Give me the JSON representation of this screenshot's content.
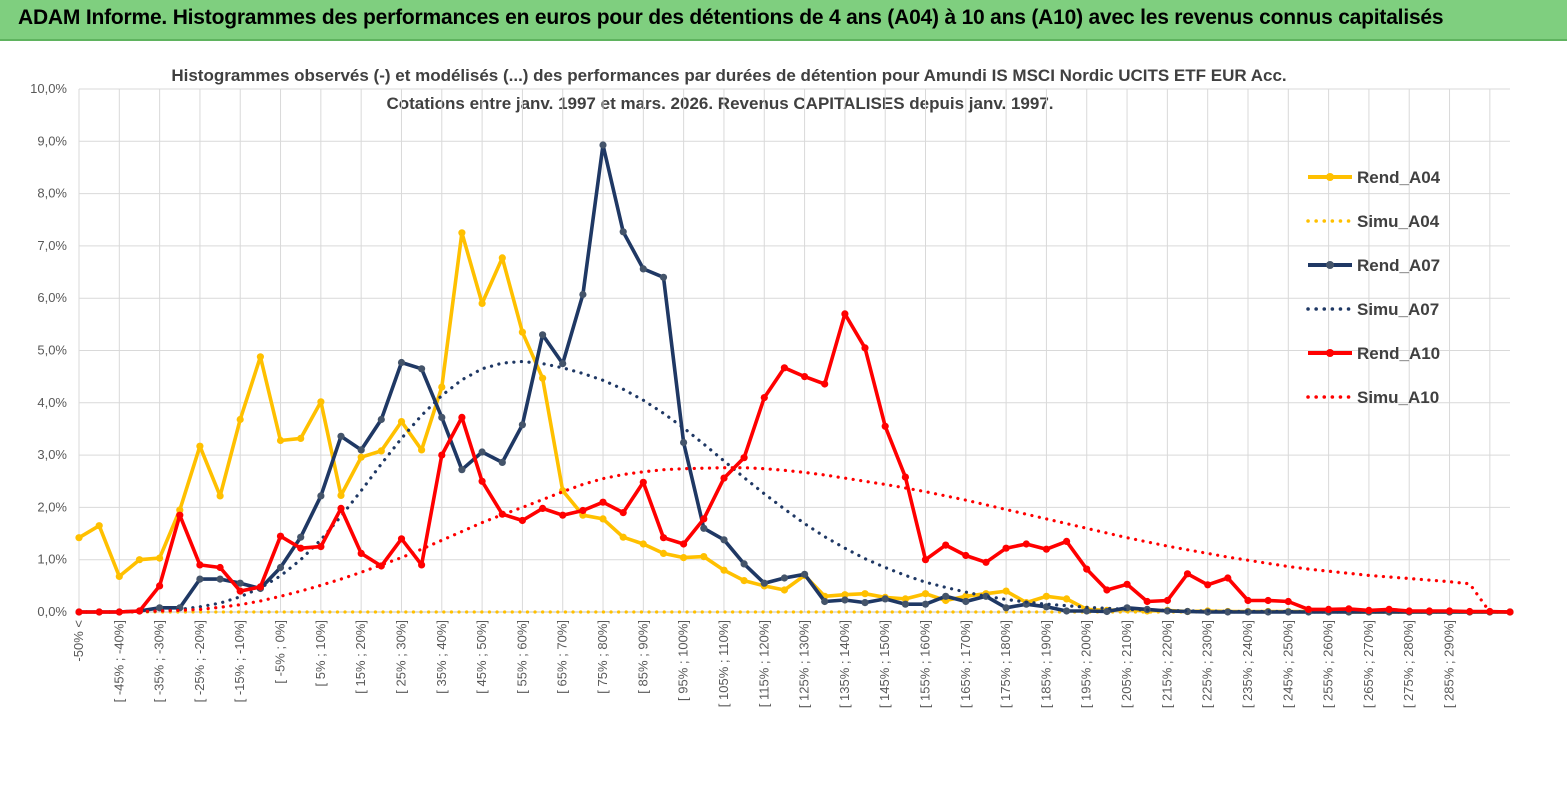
{
  "banner": {
    "title": "ADAM Informe. Histogrammes des performances en euros pour des détentions de 4 ans (A04) à 10 ans (A10) avec les revenus connus capitalisés"
  },
  "colors": {
    "banner_bg": "#7fcf7f",
    "A04": "#ffc000",
    "A07": "#1f3864",
    "A07_marker": "#44546a",
    "A10": "#ff0000",
    "grid": "#d9d9d9",
    "text": "#404040"
  },
  "chart_data": {
    "type": "line",
    "title_line1": "Histogrammes observés (-) et modélisés (...) des performances par durées de détention pour Amundi IS  MSCI Nordic UCITS ETF EUR Acc.",
    "title_line2": "Cotations entre janv. 1997 et mars. 2026.  Revenus CAPITALISES depuis janv. 1997.",
    "ylim": [
      0,
      10
    ],
    "y_ticks": [
      "0,0%",
      "1,0%",
      "2,0%",
      "3,0%",
      "4,0%",
      "5,0%",
      "6,0%",
      "7,0%",
      "8,0%",
      "9,0%",
      "10,0%"
    ],
    "x_labels": [
      "-50% <",
      "[ -45% ; -40%]",
      "[ -35% ; -30%]",
      "[ -25% ; -20%]",
      "[ -15% ; -10%]",
      "[ -5% ; 0%]",
      "[ 5% ; 10%]",
      "[ 15% ; 20%]",
      "[ 25% ; 30%]",
      "[ 35% ; 40%]",
      "[ 45% ; 50%]",
      "[ 55% ; 60%]",
      "[ 65% ; 70%]",
      "[ 75% ; 80%]",
      "[ 85% ; 90%]",
      "[ 95% ; 100%]",
      "[ 105% ; 110%]",
      "[ 115% ; 120%]",
      "[ 125% ; 130%]",
      "[ 135% ; 140%]",
      "[ 145% ; 150%]",
      "[ 155% ; 160%]",
      "[ 165% ; 170%]",
      "[ 175% ; 180%]",
      "[ 185% ; 190%]",
      "[ 195% ; 200%]",
      "[ 205% ; 210%]",
      "[ 215% ; 220%]",
      "[ 225% ; 230%]",
      "[ 235% ; 240%]",
      "[ 245% ; 250%]",
      "[ 255% ; 260%]",
      "[ 265% ; 270%]",
      "[ 275% ; 280%]",
      "[ 285% ; 290%]"
    ],
    "n_points": 72,
    "series": [
      {
        "name": "Rend_A04",
        "style": "solid",
        "color": "#ffc000",
        "values": [
          1.42,
          1.65,
          0.68,
          1.0,
          1.03,
          1.95,
          3.17,
          2.22,
          3.68,
          4.88,
          3.28,
          3.32,
          4.02,
          2.23,
          2.96,
          3.08,
          3.64,
          3.1,
          4.3,
          7.25,
          5.9,
          6.77,
          5.35,
          4.47,
          2.32,
          1.85,
          1.78,
          1.43,
          1.3,
          1.12,
          1.04,
          1.06,
          0.8,
          0.6,
          0.5,
          0.42,
          0.7,
          0.3,
          0.33,
          0.35,
          0.28,
          0.25,
          0.35,
          0.22,
          0.3,
          0.35,
          0.4,
          0.18,
          0.3,
          0.25,
          0.05,
          0.03,
          0.05,
          0.02,
          0.03,
          0.01,
          0.02,
          0.01,
          0.01,
          0.01,
          0.01,
          0.01,
          0.01,
          0.0,
          0.0,
          0.0,
          0.0,
          0.0,
          0.0,
          0.0,
          0.0,
          0.0
        ]
      },
      {
        "name": "Simu_A04",
        "style": "dotted",
        "color": "#ffc000",
        "values": [
          0.0,
          0.0,
          0.0,
          0.0,
          0.0,
          0.0,
          0.0,
          0.0,
          0.0,
          0.0,
          0.0,
          0.0,
          0.0,
          0.0,
          0.0,
          0.0,
          0.0,
          0.0,
          0.0,
          0.0,
          0.0,
          0.0,
          0.0,
          0.0,
          0.0,
          0.0,
          0.0,
          0.0,
          0.0,
          0.0,
          0.0,
          0.0,
          0.0,
          0.0,
          0.0,
          0.0,
          0.0,
          0.0,
          0.0,
          0.0,
          0.0,
          0.0,
          0.0,
          0.0,
          0.0,
          0.0,
          0.0,
          0.0,
          0.0,
          0.0,
          0.0,
          0.0,
          0.0,
          0.0,
          0.0,
          0.0,
          0.0,
          0.0,
          0.0,
          0.0,
          0.0,
          0.0,
          0.0,
          0.0,
          0.0,
          0.0,
          0.0,
          0.0,
          0.0,
          0.0,
          0.0,
          0.0
        ]
      },
      {
        "name": "Rend_A07",
        "style": "solid",
        "color": "#1f3864",
        "values": [
          0.0,
          0.0,
          0.0,
          0.02,
          0.08,
          0.08,
          0.63,
          0.63,
          0.55,
          0.45,
          0.85,
          1.43,
          2.22,
          3.36,
          3.1,
          3.68,
          4.77,
          4.65,
          3.72,
          2.72,
          3.06,
          2.86,
          3.58,
          5.3,
          4.75,
          6.07,
          8.93,
          7.27,
          6.56,
          6.4,
          3.24,
          1.6,
          1.38,
          0.92,
          0.55,
          0.65,
          0.72,
          0.2,
          0.23,
          0.18,
          0.25,
          0.15,
          0.15,
          0.3,
          0.2,
          0.3,
          0.08,
          0.15,
          0.1,
          0.02,
          0.02,
          0.01,
          0.08,
          0.05,
          0.02,
          0.01,
          0.0,
          0.0,
          0.0,
          0.0,
          0.0,
          0.0,
          0.0,
          0.0,
          0.0,
          0.0,
          0.0,
          0.0,
          0.0,
          0.0,
          0.0,
          0.0
        ]
      },
      {
        "name": "Simu_A07",
        "style": "dotted",
        "color": "#1f3864",
        "values": [
          0.0,
          0.0,
          0.0,
          0.01,
          0.02,
          0.05,
          0.1,
          0.17,
          0.29,
          0.46,
          0.69,
          1.0,
          1.38,
          1.83,
          2.32,
          2.83,
          3.32,
          3.76,
          4.14,
          4.44,
          4.65,
          4.76,
          4.79,
          4.75,
          4.67,
          4.56,
          4.43,
          4.26,
          4.05,
          3.8,
          3.52,
          3.21,
          2.89,
          2.57,
          2.26,
          1.97,
          1.69,
          1.44,
          1.22,
          1.02,
          0.85,
          0.7,
          0.57,
          0.47,
          0.38,
          0.3,
          0.24,
          0.19,
          0.15,
          0.12,
          0.09,
          0.07,
          0.05,
          0.04,
          0.03,
          0.02,
          0.02,
          0.01,
          0.01,
          0.01,
          0.01,
          0.0,
          0.0,
          0.0,
          0.0,
          0.0,
          0.0,
          0.0,
          0.0,
          0.0,
          0.0,
          0.0
        ]
      },
      {
        "name": "Rend_A10",
        "style": "solid",
        "color": "#ff0000",
        "values": [
          0.0,
          0.0,
          0.0,
          0.02,
          0.5,
          1.85,
          0.9,
          0.85,
          0.4,
          0.48,
          1.45,
          1.22,
          1.25,
          1.98,
          1.12,
          0.88,
          1.4,
          0.9,
          3.0,
          3.72,
          2.5,
          1.87,
          1.75,
          1.98,
          1.85,
          1.94,
          2.1,
          1.9,
          2.48,
          1.42,
          1.3,
          1.78,
          2.56,
          2.95,
          4.1,
          4.67,
          4.5,
          4.36,
          5.7,
          5.05,
          3.55,
          2.58,
          1.0,
          1.28,
          1.08,
          0.95,
          1.22,
          1.3,
          1.2,
          1.35,
          0.82,
          0.42,
          0.53,
          0.2,
          0.22,
          0.73,
          0.52,
          0.65,
          0.22,
          0.22,
          0.2,
          0.05,
          0.05,
          0.06,
          0.03,
          0.05,
          0.02,
          0.02,
          0.02,
          0.01,
          0.01,
          0.0
        ]
      },
      {
        "name": "Simu_A10",
        "style": "dotted",
        "color": "#ff0000",
        "values": [
          0.0,
          0.0,
          0.0,
          0.01,
          0.02,
          0.03,
          0.05,
          0.09,
          0.14,
          0.21,
          0.3,
          0.4,
          0.51,
          0.63,
          0.76,
          0.9,
          1.04,
          1.2,
          1.37,
          1.54,
          1.71,
          1.86,
          2.0,
          2.15,
          2.3,
          2.44,
          2.55,
          2.63,
          2.68,
          2.72,
          2.74,
          2.75,
          2.76,
          2.76,
          2.74,
          2.71,
          2.67,
          2.62,
          2.56,
          2.5,
          2.44,
          2.37,
          2.3,
          2.22,
          2.14,
          2.05,
          1.96,
          1.87,
          1.78,
          1.69,
          1.6,
          1.51,
          1.42,
          1.34,
          1.26,
          1.19,
          1.12,
          1.05,
          0.99,
          0.93,
          0.87,
          0.82,
          0.78,
          0.74,
          0.7,
          0.67,
          0.64,
          0.61,
          0.58,
          0.54,
          0.0,
          0.0
        ]
      }
    ],
    "legend": [
      "Rend_A04",
      "Simu_A04",
      "Rend_A07",
      "Simu_A07",
      "Rend_A10",
      "Simu_A10"
    ],
    "legend_position": "right"
  }
}
